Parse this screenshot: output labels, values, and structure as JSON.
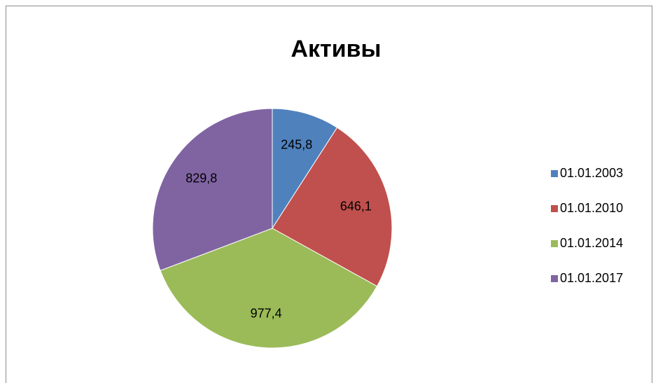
{
  "chart_data": {
    "type": "pie",
    "title": "Активы",
    "categories": [
      "01.01.2003",
      "01.01.2010",
      "01.01.2014",
      "01.01.2017"
    ],
    "values": [
      245.8,
      646.1,
      977.4,
      829.8
    ],
    "value_labels": [
      "245,8",
      "646,1",
      "977,4",
      "829,8"
    ],
    "colors": [
      "#4f81bd",
      "#c0504d",
      "#9bbb59",
      "#8064a2"
    ],
    "legend": "right"
  }
}
